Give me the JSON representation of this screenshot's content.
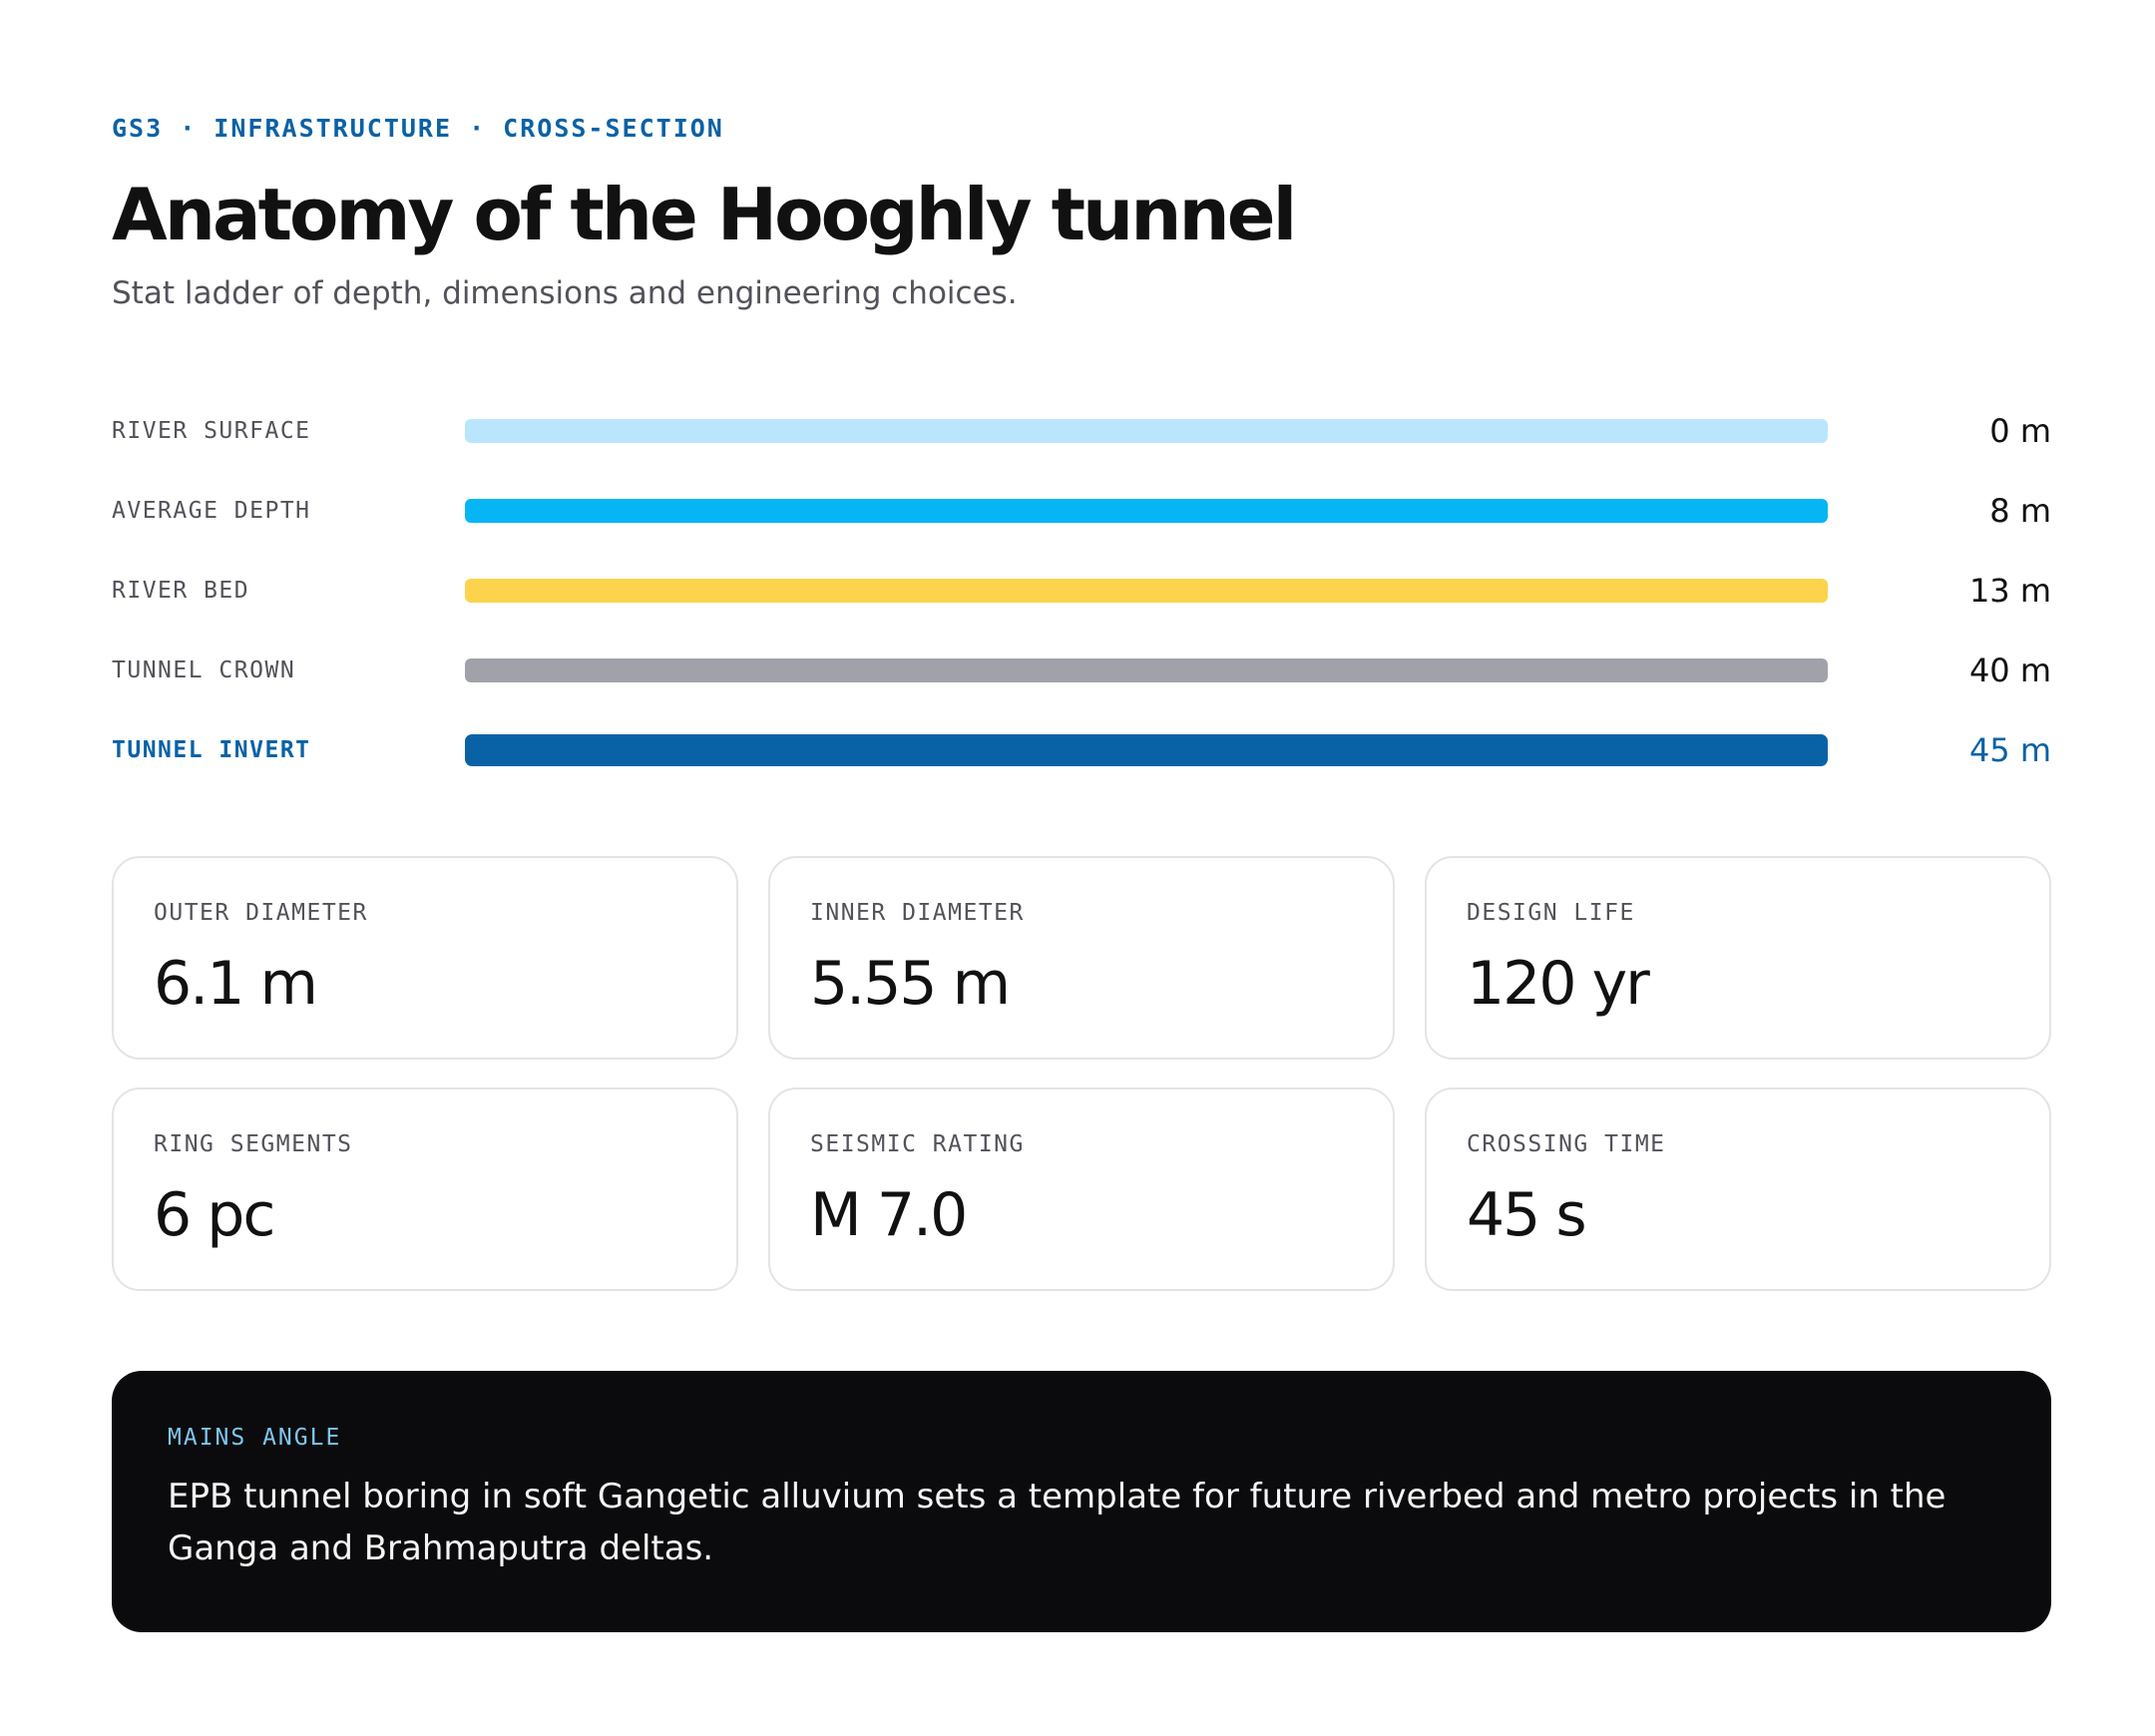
{
  "header": {
    "eyebrow": "GS3 · INFRASTRUCTURE · CROSS-SECTION",
    "title": "Anatomy of the Hooghly tunnel",
    "subtitle": "Stat ladder of depth, dimensions and engineering choices."
  },
  "ladder": {
    "rungs": [
      {
        "label": "RIVER SURFACE",
        "value": "0 m",
        "color": "#bae6fd"
      },
      {
        "label": "AVERAGE DEPTH",
        "value": "8 m",
        "color": "#06b6f4"
      },
      {
        "label": "RIVER BED",
        "value": "13 m",
        "color": "#fcd34d"
      },
      {
        "label": "TUNNEL CROWN",
        "value": "40 m",
        "color": "#a1a1aa"
      },
      {
        "label": "TUNNEL INVERT",
        "value": "45 m",
        "color": "#0a62a6"
      }
    ]
  },
  "stats": [
    {
      "label": "OUTER DIAMETER",
      "value": "6.1 m"
    },
    {
      "label": "INNER DIAMETER",
      "value": "5.55 m"
    },
    {
      "label": "DESIGN LIFE",
      "value": "120 yr"
    },
    {
      "label": "RING SEGMENTS",
      "value": "6 pc"
    },
    {
      "label": "SEISMIC RATING",
      "value": "M 7.0"
    },
    {
      "label": "CROSSING TIME",
      "value": "45 s"
    }
  ],
  "callout": {
    "label": "MAINS ANGLE",
    "text": "EPB tunnel boring in soft Gangetic alluvium sets a template for future riverbed and metro projects in the Ganga and Brahmaputra deltas."
  }
}
